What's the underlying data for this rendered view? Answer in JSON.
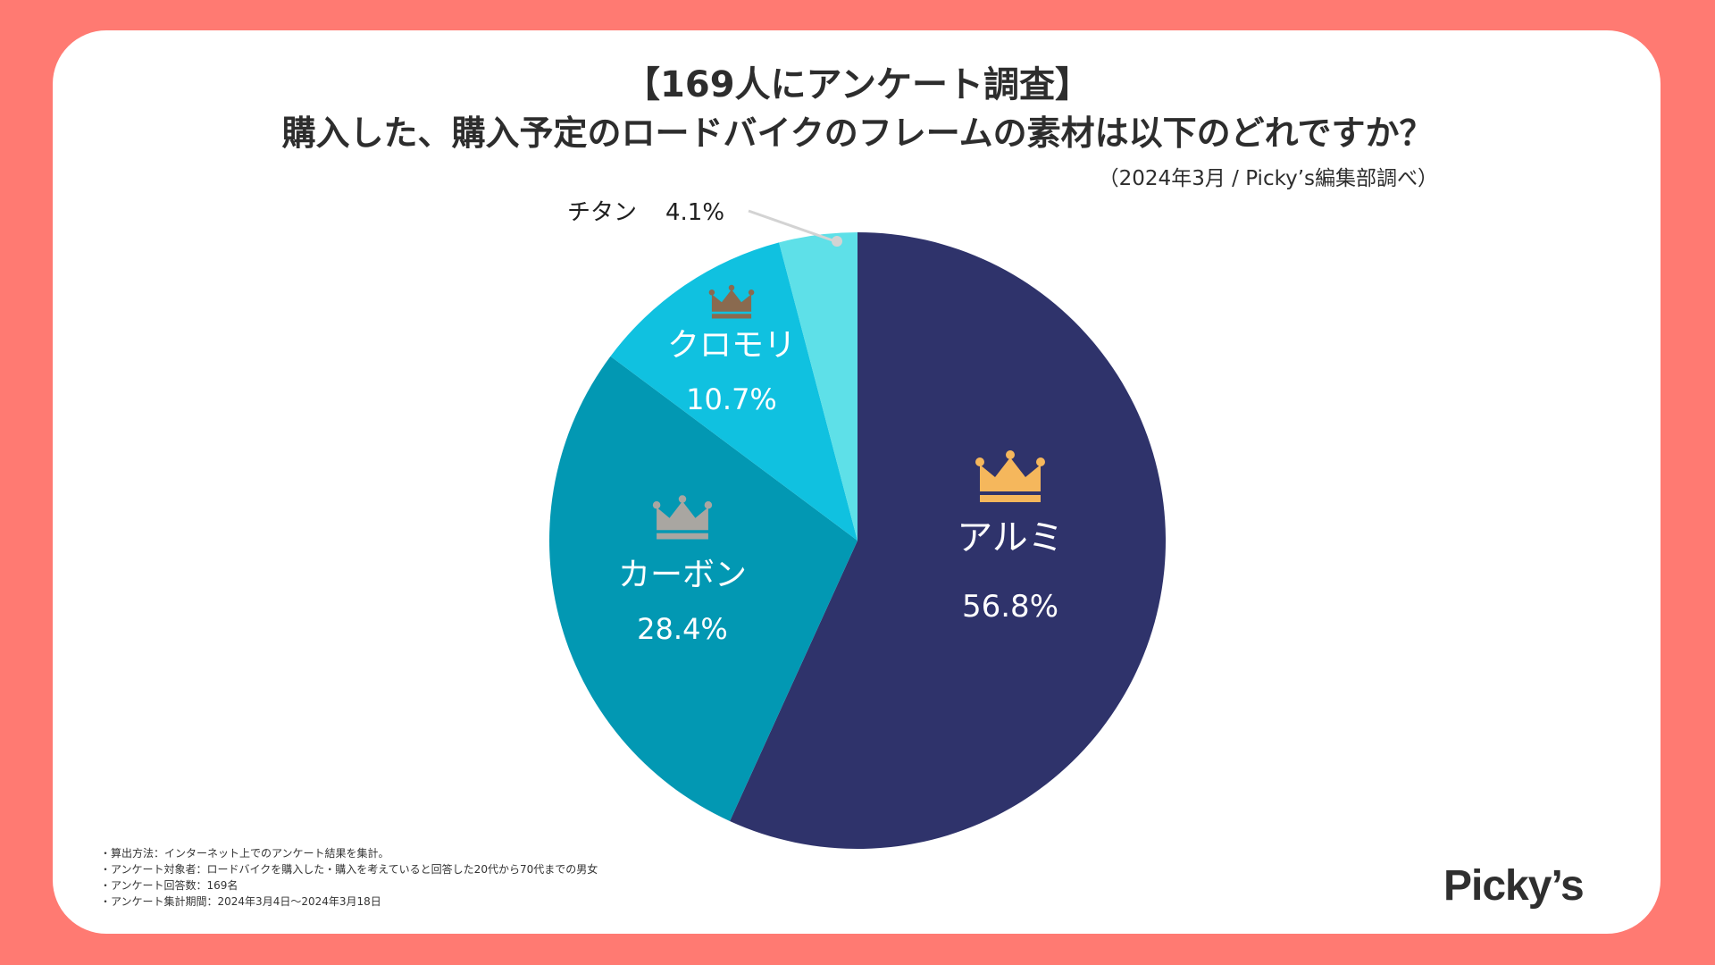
{
  "header": {
    "title_line1": "【169人にアンケート調査】",
    "title_line2": "購入した、購入予定のロードバイクのフレームの素材は以下のどれですか？",
    "source": "（2024年3月 / Picky’s編集部調べ）"
  },
  "colors": {
    "background": "#ff7a72",
    "aluminum": "#2f336b",
    "carbon": "#0298b3",
    "chromoly": "#10c1e0",
    "titanium": "#5ee0e8",
    "crown_gold": "#f5b75c",
    "crown_silver": "#a9a6a1",
    "crown_bronze": "#8a6a4f"
  },
  "chart_data": {
    "type": "pie",
    "title": "購入した、購入予定のロードバイクのフレームの素材は以下のどれですか？",
    "start": "12 o'clock, clockwise",
    "slices": [
      {
        "label": "アルミ",
        "value": 56.8,
        "value_label": "56.8%",
        "rank": 1
      },
      {
        "label": "カーボン",
        "value": 28.4,
        "value_label": "28.4%",
        "rank": 2
      },
      {
        "label": "クロモリ",
        "value": 10.7,
        "value_label": "10.7%",
        "rank": 3
      },
      {
        "label": "チタン",
        "value": 4.1,
        "value_label": "4.1%",
        "rank": null
      }
    ]
  },
  "notes": [
    "・算出方法：インターネット上でのアンケート結果を集計。",
    "・アンケート対象者：ロードバイクを購入した・購入を考えていると回答した20代から70代までの男女",
    "・アンケート回答数：169名",
    "・アンケート集計期間：2024年3月4日〜2024年3月18日"
  ],
  "logo": "Picky’s"
}
